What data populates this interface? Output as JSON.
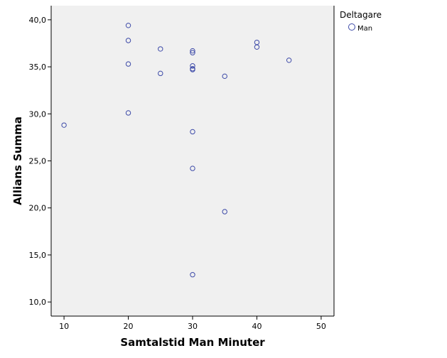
{
  "chart_data": {
    "type": "scatter",
    "title": "",
    "xlabel": "Samtalstid Man Minuter",
    "ylabel": "Allians Summa",
    "xlim": [
      8,
      52
    ],
    "ylim": [
      8.5,
      41.5
    ],
    "xticks": [
      10,
      20,
      30,
      40,
      50
    ],
    "yticks": [
      10.0,
      15.0,
      20.0,
      25.0,
      30.0,
      35.0,
      40.0
    ],
    "xtick_labels": [
      "10",
      "20",
      "30",
      "40",
      "50"
    ],
    "ytick_labels": [
      "10,0",
      "15,0",
      "20,0",
      "25,0",
      "30,0",
      "35,0",
      "40,0"
    ],
    "grid": false,
    "legend": {
      "title": "Deltagare",
      "placement": "right",
      "entries": [
        "Man"
      ]
    },
    "series": [
      {
        "name": "Man",
        "color": "#3d4aa8",
        "points": [
          {
            "x": 10,
            "y": 28.8
          },
          {
            "x": 20,
            "y": 39.4
          },
          {
            "x": 20,
            "y": 37.8
          },
          {
            "x": 20,
            "y": 35.3
          },
          {
            "x": 20,
            "y": 30.1
          },
          {
            "x": 25,
            "y": 36.9
          },
          {
            "x": 25,
            "y": 34.3
          },
          {
            "x": 30,
            "y": 36.7
          },
          {
            "x": 30,
            "y": 36.5
          },
          {
            "x": 30,
            "y": 35.1
          },
          {
            "x": 30,
            "y": 34.8
          },
          {
            "x": 30,
            "y": 34.7
          },
          {
            "x": 30,
            "y": 28.1
          },
          {
            "x": 30,
            "y": 24.2
          },
          {
            "x": 30,
            "y": 12.9
          },
          {
            "x": 35,
            "y": 34.0
          },
          {
            "x": 35,
            "y": 19.6
          },
          {
            "x": 40,
            "y": 37.6
          },
          {
            "x": 40,
            "y": 37.1
          },
          {
            "x": 45,
            "y": 35.7
          }
        ]
      }
    ]
  },
  "colors": {
    "plot_background": "#f0f0f0",
    "page_background": "#ffffff",
    "marker": "#3d4aa8",
    "axis": "#000000"
  }
}
